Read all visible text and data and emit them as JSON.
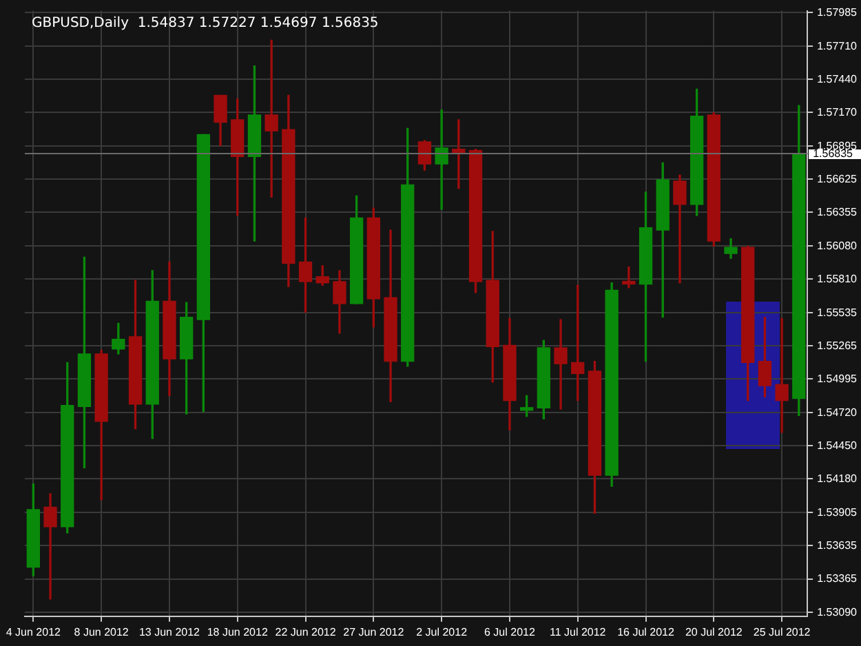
{
  "chart_data": {
    "type": "candlestick",
    "title": "GBPUSD,Daily  1.54837 1.57227 1.54697 1.56835",
    "categories": [
      "4 Jun 2012",
      null,
      null,
      null,
      "8 Jun 2012",
      null,
      null,
      null,
      "13 Jun 2012",
      null,
      null,
      null,
      "18 Jun 2012",
      null,
      null,
      null,
      "22 Jun 2012",
      null,
      null,
      null,
      "27 Jun 2012",
      null,
      null,
      null,
      "2 Jul 2012",
      null,
      null,
      null,
      "6 Jul 2012",
      null,
      null,
      null,
      "11 Jul 2012",
      null,
      null,
      null,
      "16 Jul 2012",
      null,
      null,
      null,
      "20 Jul 2012",
      null,
      null,
      null,
      "25 Jul 2012",
      null
    ],
    "ohlc": [
      [
        1.5346,
        1.5414,
        1.5339,
        1.5393
      ],
      [
        1.5395,
        1.5406,
        1.532,
        1.5379
      ],
      [
        1.5379,
        1.5513,
        1.5374,
        1.5478
      ],
      [
        1.5477,
        1.5599,
        1.5427,
        1.552
      ],
      [
        1.552,
        1.5523,
        1.5401,
        1.5465
      ],
      [
        1.5524,
        1.5545,
        1.552,
        1.5532
      ],
      [
        1.5534,
        1.558,
        1.5459,
        1.5479
      ],
      [
        1.5479,
        1.5588,
        1.5451,
        1.5563
      ],
      [
        1.5563,
        1.5595,
        1.5486,
        1.5516
      ],
      [
        1.5516,
        1.5562,
        1.5471,
        1.555
      ],
      [
        1.5548,
        1.5699,
        1.5473,
        1.5699
      ],
      [
        1.5731,
        1.5731,
        1.569,
        1.5709
      ],
      [
        1.5711,
        1.5728,
        1.5633,
        1.5681
      ],
      [
        1.5681,
        1.5755,
        1.5612,
        1.5715
      ],
      [
        1.5715,
        1.5776,
        1.5648,
        1.5702
      ],
      [
        1.5703,
        1.5731,
        1.5575,
        1.5594
      ],
      [
        1.5595,
        1.5631,
        1.5554,
        1.5579
      ],
      [
        1.5583,
        1.5592,
        1.5576,
        1.5578
      ],
      [
        1.5579,
        1.5588,
        1.5537,
        1.5561
      ],
      [
        1.5561,
        1.5649,
        1.5561,
        1.5631
      ],
      [
        1.5631,
        1.5639,
        1.5542,
        1.5565
      ],
      [
        1.5566,
        1.5621,
        1.5481,
        1.5514
      ],
      [
        1.5514,
        1.5704,
        1.551,
        1.5658
      ],
      [
        1.5693,
        1.5694,
        1.567,
        1.5675
      ],
      [
        1.5675,
        1.5719,
        1.5638,
        1.5688
      ],
      [
        1.5687,
        1.5711,
        1.5655,
        1.5684
      ],
      [
        1.5686,
        1.5687,
        1.557,
        1.5579
      ],
      [
        1.558,
        1.562,
        1.5497,
        1.5526
      ],
      [
        1.5527,
        1.5549,
        1.5458,
        1.5482
      ],
      [
        1.5474,
        1.5486,
        1.5469,
        1.5476
      ],
      [
        1.5476,
        1.5531,
        1.5467,
        1.5525
      ],
      [
        1.5525,
        1.5548,
        1.5475,
        1.5512
      ],
      [
        1.5513,
        1.5576,
        1.5482,
        1.5504
      ],
      [
        1.5506,
        1.5514,
        1.539,
        1.5421
      ],
      [
        1.5421,
        1.5578,
        1.5412,
        1.5572
      ],
      [
        1.5579,
        1.5591,
        1.5574,
        1.5577
      ],
      [
        1.5577,
        1.5652,
        1.5514,
        1.5623
      ],
      [
        1.5621,
        1.5676,
        1.555,
        1.5662
      ],
      [
        1.5661,
        1.5666,
        1.5578,
        1.5642
      ],
      [
        1.5642,
        1.5736,
        1.5633,
        1.5714
      ],
      [
        1.5715,
        1.5717,
        1.5608,
        1.5612
      ],
      [
        1.5602,
        1.5614,
        1.5598,
        1.5607
      ],
      [
        1.5607,
        1.5608,
        1.5482,
        1.5513
      ],
      [
        1.5514,
        1.555,
        1.5485,
        1.5494
      ],
      [
        1.5495,
        1.5549,
        1.5456,
        1.5482
      ],
      [
        1.54837,
        1.57227,
        1.54697,
        1.56835
      ]
    ],
    "colors": [
      "#0a8a0a",
      "#a00c0c",
      "#0a8a0a",
      "#0a8a0a",
      "#a00c0c",
      "#0a8a0a",
      "#a00c0c",
      "#0a8a0a",
      "#a00c0c",
      "#0a8a0a",
      "#0a8a0a",
      "#a00c0c",
      "#a00c0c",
      "#0a8a0a",
      "#a00c0c",
      "#a00c0c",
      "#a00c0c",
      "#a00c0c",
      "#a00c0c",
      "#0a8a0a",
      "#a00c0c",
      "#a00c0c",
      "#0a8a0a",
      "#a00c0c",
      "#0a8a0a",
      "#a00c0c",
      "#a00c0c",
      "#a00c0c",
      "#a00c0c",
      "#0a8a0a",
      "#0a8a0a",
      "#a00c0c",
      "#a00c0c",
      "#a00c0c",
      "#0a8a0a",
      "#a00c0c",
      "#0a8a0a",
      "#0a8a0a",
      "#a00c0c",
      "#0a8a0a",
      "#a00c0c",
      "#0a8a0a",
      "#a00c0c",
      "#a00c0c",
      "#a00c0c",
      "#0a8a0a"
    ],
    "ylim": [
      1.5306,
      1.58
    ],
    "yticks": [
      {
        "value": 1.5309,
        "label": "1.53090"
      },
      1.53365,
      1.53635,
      1.53905,
      {
        "value": 1.5418,
        "label": "1.54180"
      },
      {
        "value": 1.5445,
        "label": "1.54450"
      },
      {
        "value": 1.5472,
        "label": "1.54720"
      },
      1.54995,
      1.55265,
      1.55535,
      {
        "value": 1.5581,
        "label": "1.55810"
      },
      {
        "value": 1.5608,
        "label": "1.56080"
      },
      1.56355,
      1.56625,
      1.56895,
      {
        "value": 1.5717,
        "label": "1.57170"
      },
      {
        "value": 1.5744,
        "label": "1.57440"
      },
      {
        "value": 1.5771,
        "label": "1.57710"
      },
      1.57985
    ],
    "ref_lines": [
      {
        "axis": "y",
        "value": 1.56835,
        "label": "1.56835",
        "color": "#6a6a6a"
      }
    ],
    "grid": true
  }
}
